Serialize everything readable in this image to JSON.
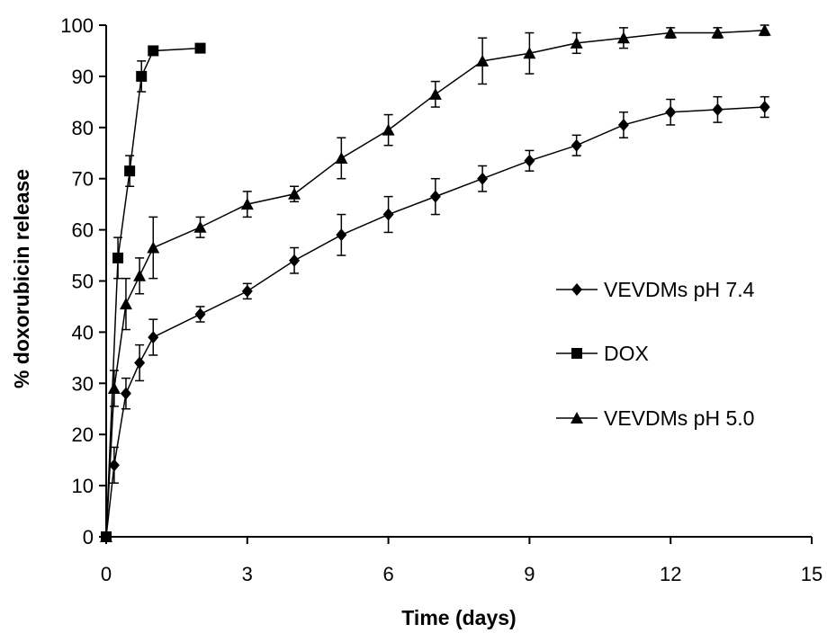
{
  "chart_data": {
    "type": "line",
    "title": "",
    "xlabel": "Time (days)",
    "ylabel": "% doxorubicin release",
    "xlim": [
      0,
      15
    ],
    "ylim": [
      0,
      100
    ],
    "xticks": [
      "0",
      "3",
      "6",
      "9",
      "12",
      "15"
    ],
    "yticks": [
      "0",
      "10",
      "20",
      "30",
      "40",
      "50",
      "60",
      "70",
      "80",
      "90",
      "100"
    ],
    "grid": false,
    "legend_position": "right",
    "series": [
      {
        "name": "VEVDMs pH 7.4",
        "marker": "diamond",
        "x": [
          0,
          0.17,
          0.42,
          0.71,
          1,
          2,
          3,
          4,
          5,
          6,
          7,
          8,
          9,
          10,
          11,
          12,
          13,
          14
        ],
        "y": [
          0,
          14,
          28,
          34,
          39,
          43.5,
          48,
          54,
          59,
          63,
          66.5,
          70,
          73.5,
          76.5,
          80.5,
          83,
          83.5,
          84
        ],
        "err": [
          0,
          3.5,
          3,
          3.5,
          3.5,
          1.5,
          1.5,
          2.5,
          4,
          3.5,
          3.5,
          2.5,
          2,
          2,
          2.5,
          2.5,
          2.5,
          2
        ]
      },
      {
        "name": "DOX",
        "marker": "square",
        "x": [
          0,
          0.25,
          0.5,
          0.75,
          1,
          2
        ],
        "y": [
          0,
          54.5,
          71.5,
          90,
          95,
          95.5
        ],
        "err": [
          0,
          4,
          3,
          3,
          0.5,
          0.5
        ]
      },
      {
        "name": "VEVDMs pH 5.0",
        "marker": "triangle",
        "x": [
          0,
          0.17,
          0.42,
          0.71,
          1,
          2,
          3,
          4,
          5,
          6,
          7,
          8,
          9,
          10,
          11,
          12,
          13,
          14
        ],
        "y": [
          0,
          29,
          45.5,
          51,
          56.5,
          60.5,
          65,
          67,
          74,
          79.5,
          86.5,
          93,
          94.5,
          96.5,
          97.5,
          98.5,
          98.5,
          99
        ],
        "err": [
          0,
          3.5,
          5,
          3.5,
          6,
          2,
          2.5,
          1.5,
          4,
          3,
          2.5,
          4.5,
          4,
          2,
          2,
          1,
          1,
          1
        ]
      }
    ]
  }
}
